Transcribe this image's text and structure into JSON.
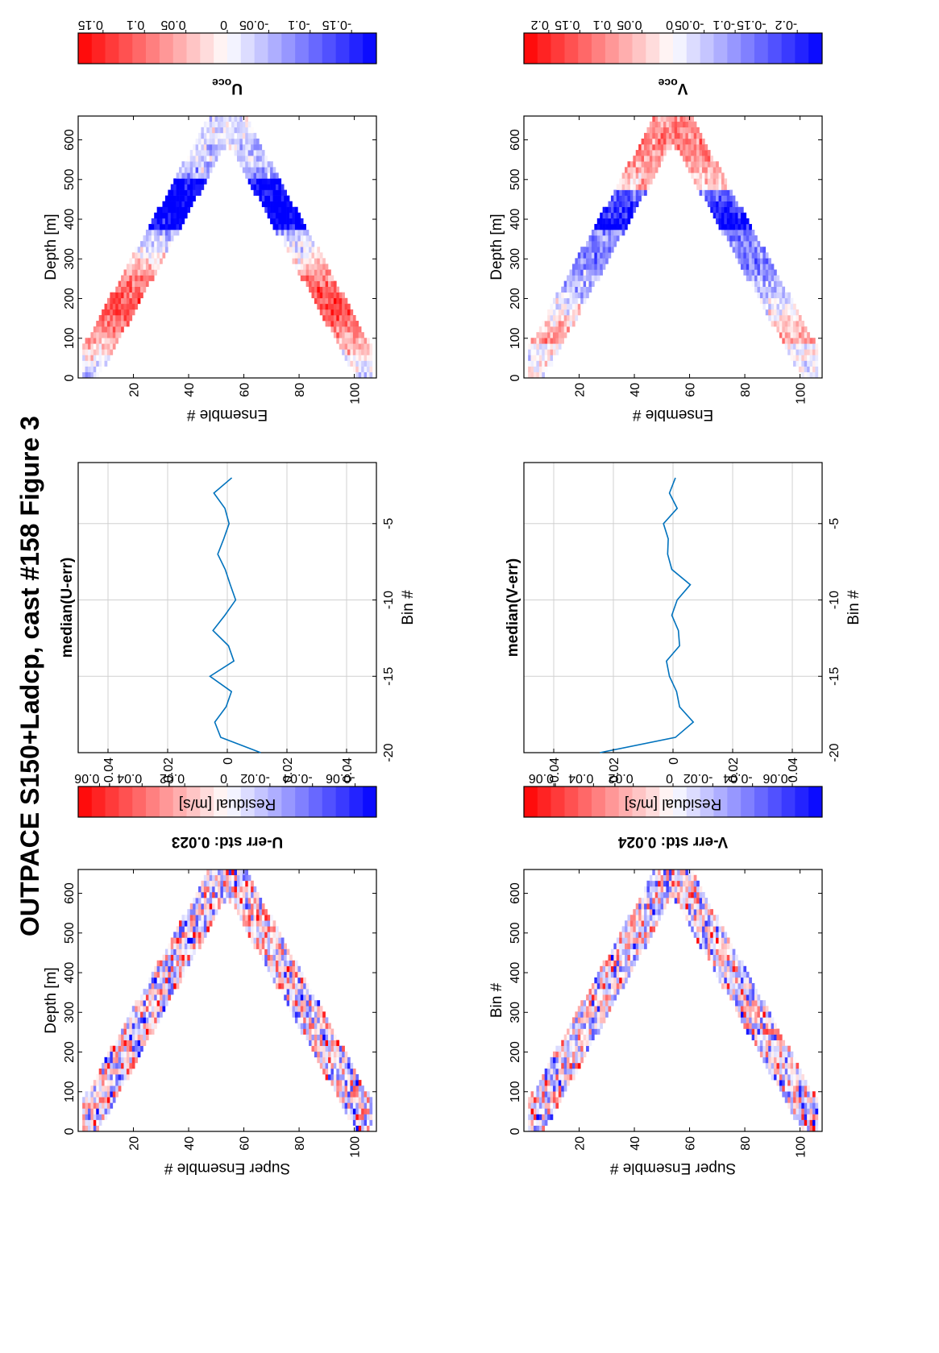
{
  "figure_title": "OUTPACE S150+Ladcp, cast #158  Figure 3",
  "chart_data": [
    {
      "id": "u-err",
      "type": "heatmap",
      "title": "U-err std: 0.023",
      "xlabel": "Super Ensemble #",
      "ylabel": "Depth [m]",
      "xticks": [
        20,
        40,
        60,
        80,
        100
      ],
      "yticks": [
        0,
        100,
        200,
        300,
        400,
        500,
        600
      ],
      "xlim": [
        0,
        108
      ],
      "ylim": [
        0,
        660
      ],
      "colorbar": {
        "min": -0.07,
        "max": 0.07,
        "ticks": [
          0.06,
          0.04,
          0.02,
          0,
          -0.02,
          -0.04,
          -0.06
        ],
        "tick_labels": [
          "0.06",
          "0.04",
          "0.02",
          "0",
          "-0.02",
          "-0.04",
          "-0.06"
        ]
      },
      "v_turn_ensemble": 54,
      "max_depth": 660
    },
    {
      "id": "median-u-err",
      "type": "line",
      "title": "median(U-err)",
      "xlabel": "Residual [m/s]",
      "ylabel": "Bin #",
      "xticks": [
        -0.04,
        -0.02,
        0,
        0.02,
        0.04
      ],
      "xtick_labels": [
        "-0.04",
        "-0.02",
        "0",
        "0.02",
        "0.04"
      ],
      "yticks": [
        -5,
        -10,
        -15,
        -20
      ],
      "xlim": [
        -0.05,
        0.05
      ],
      "ylim": [
        -20,
        -1
      ],
      "grid": true,
      "series": [
        {
          "y": [
            -2,
            -3,
            -4,
            -5,
            -6,
            -7,
            -8,
            -9,
            -10,
            -11,
            -12,
            -13,
            -14,
            -15,
            -16,
            -17,
            -18,
            -19,
            -20
          ],
          "x": [
            0.0015,
            -0.0045,
            -0.0008,
            0.0006,
            -0.0012,
            -0.0032,
            -0.0007,
            0.001,
            0.0028,
            -0.0008,
            -0.0048,
            0.0004,
            0.0022,
            -0.0058,
            0.0014,
            -0.0004,
            -0.0042,
            -0.0022,
            0.0112
          ]
        }
      ]
    },
    {
      "id": "u-oce",
      "type": "heatmap",
      "title": "U",
      "title_subscript": "oce",
      "xlabel": "Ensemble #",
      "ylabel": "Depth [m]",
      "xticks": [
        20,
        40,
        60,
        80,
        100
      ],
      "yticks": [
        0,
        100,
        200,
        300,
        400,
        500,
        600
      ],
      "xlim": [
        0,
        108
      ],
      "ylim": [
        0,
        660
      ],
      "colorbar": {
        "min": -0.18,
        "max": 0.18,
        "ticks": [
          0.15,
          0.1,
          0.05,
          0,
          -0.05,
          -0.1,
          -0.15
        ],
        "tick_labels": [
          "0.15",
          "0.1",
          "0.05",
          "0",
          "-0.05",
          "-0.1",
          "-0.15"
        ]
      },
      "v_turn_ensemble": 54,
      "max_depth": 660
    },
    {
      "id": "v-err",
      "type": "heatmap",
      "title": "V-err std: 0.024",
      "xlabel": "Super Ensemble #",
      "ylabel": "Bin #",
      "xticks": [
        20,
        40,
        60,
        80,
        100
      ],
      "yticks": [
        0,
        100,
        200,
        300,
        400,
        500,
        600
      ],
      "xlim": [
        0,
        108
      ],
      "ylim": [
        0,
        660
      ],
      "colorbar": {
        "min": -0.075,
        "max": 0.075,
        "ticks": [
          0.06,
          0.04,
          0.02,
          0,
          -0.02,
          -0.04,
          -0.06
        ],
        "tick_labels": [
          "0.06",
          "0.04",
          "0.02",
          "0",
          "-0.02",
          "-0.04",
          "-0.06"
        ]
      },
      "v_turn_ensemble": 54,
      "max_depth": 660
    },
    {
      "id": "median-v-err",
      "type": "line",
      "title": "median(V-err)",
      "xlabel": "Residual [m/s]",
      "ylabel": "Bin #",
      "xticks": [
        -0.04,
        -0.02,
        0,
        0.02,
        0.04
      ],
      "xtick_labels": [
        "-0.04",
        "-0.02",
        "0",
        "0.02",
        "0.04"
      ],
      "yticks": [
        -5,
        -10,
        -15,
        -20
      ],
      "xlim": [
        -0.05,
        0.05
      ],
      "ylim": [
        -20,
        -1
      ],
      "grid": true,
      "series": [
        {
          "y": [
            -2,
            -3,
            -4,
            -5,
            -6,
            -7,
            -8,
            -9,
            -10,
            -11,
            -12,
            -13,
            -14,
            -15,
            -16,
            -17,
            -18,
            -19,
            -20
          ],
          "x": [
            0.0008,
            -0.0012,
            0.0014,
            -0.0032,
            -0.0016,
            -0.0018,
            -0.0004,
            0.0058,
            0.0014,
            -0.0004,
            0.0018,
            0.0022,
            -0.0022,
            -0.0012,
            0.0012,
            0.0022,
            0.0068,
            0.0008,
            -0.0245
          ]
        }
      ]
    },
    {
      "id": "v-oce",
      "type": "heatmap",
      "title": "V",
      "title_subscript": "oce",
      "xlabel": "Ensemble #",
      "ylabel": "Depth [m]",
      "xticks": [
        20,
        40,
        60,
        80,
        100
      ],
      "yticks": [
        0,
        100,
        200,
        300,
        400,
        500,
        600
      ],
      "xlim": [
        0,
        108
      ],
      "ylim": [
        0,
        660
      ],
      "colorbar": {
        "min": -0.24,
        "max": 0.24,
        "ticks": [
          0.2,
          0.15,
          0.1,
          0.05,
          0,
          -0.05,
          -0.1,
          -0.15,
          -0.2
        ],
        "tick_labels": [
          "0.2",
          "0.15",
          "0.1",
          "0.05",
          "0",
          "-0.05",
          "-0.1",
          "-0.15",
          "-0.2"
        ]
      },
      "v_turn_ensemble": 54,
      "max_depth": 660
    }
  ]
}
